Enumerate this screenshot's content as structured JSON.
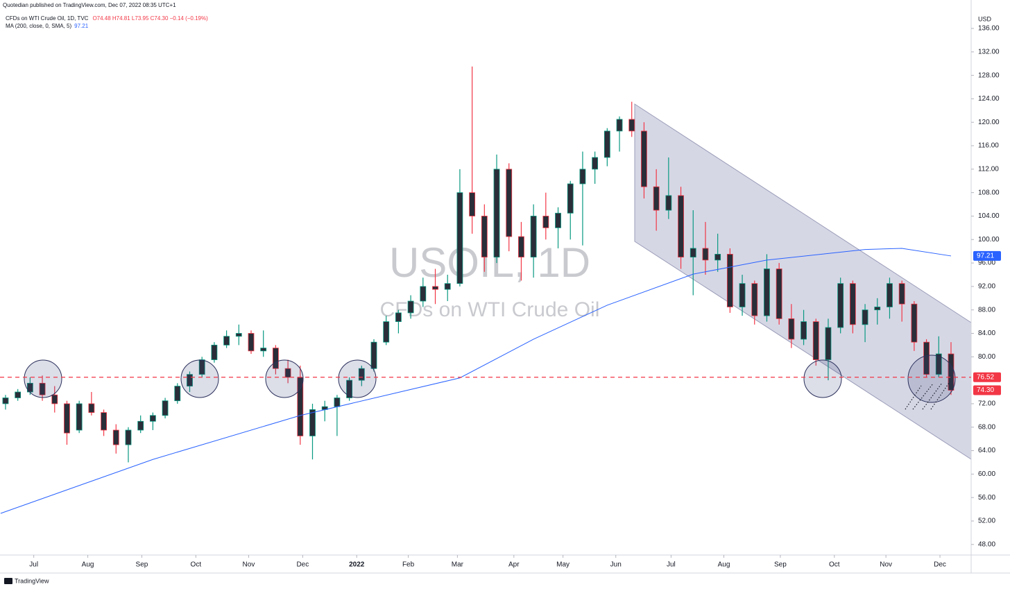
{
  "chart_data": {
    "type": "candlestick",
    "title": "USOIL, 1D",
    "subtitle": "CFDs on WTI Crude Oil",
    "source": "Quotedian published on TradingView.com, Dec 07, 2022 08:35 UTC+1",
    "symbol": "CFDs on WTI Crude Oil, 1D, TVC",
    "ohlc_text": "O74.48 H74.81 L73.95 C74.30 −0.14 (−0.19%)",
    "y_unit": "USD",
    "branding": "TradingView",
    "up_color": "#089981",
    "down_color": "#f23645",
    "body_color": "#2a2e39",
    "x": [
      0,
      1,
      2,
      3,
      4,
      5,
      6,
      7,
      8,
      9,
      10,
      11,
      12,
      13,
      14,
      15,
      16,
      17,
      18,
      19,
      20,
      21,
      22,
      23,
      24,
      25,
      26,
      27,
      28,
      29,
      30,
      31,
      32,
      33,
      34,
      35,
      36,
      37,
      38,
      39,
      40,
      41,
      42,
      43,
      44,
      45,
      46,
      47,
      48,
      49,
      50,
      51,
      52,
      53,
      54,
      55,
      56,
      57,
      58,
      59,
      60,
      61,
      62,
      63,
      64,
      65,
      66,
      67,
      68,
      69,
      70,
      71,
      72,
      73,
      74,
      75,
      76,
      77
    ],
    "open": [
      72.0,
      73.0,
      74.0,
      75.5,
      73.5,
      72.0,
      67.5,
      72.0,
      70.5,
      67.5,
      65.0,
      67.5,
      69.0,
      70.0,
      72.5,
      75.0,
      77.0,
      79.5,
      82.0,
      83.5,
      84.0,
      81.0,
      81.5,
      78.0,
      76.5,
      66.5,
      71.0,
      71.5,
      73.0,
      76.0,
      78.0,
      82.5,
      86.0,
      87.5,
      89.5,
      92.0,
      91.5,
      92.5,
      108.0,
      104.0,
      97.0,
      112.0,
      100.5,
      97.0,
      104.0,
      102.0,
      104.5,
      109.5,
      112.0,
      114.0,
      118.5,
      120.5,
      118.5,
      109.0,
      105.0,
      107.5,
      97.0,
      98.5,
      96.5,
      97.5,
      88.5,
      92.5,
      87.0,
      95.0,
      86.5,
      83.0,
      86.0,
      79.5,
      85.0,
      92.5,
      85.5,
      88.0,
      88.5,
      92.5,
      89.0,
      82.5,
      77.0,
      80.5
    ],
    "high": [
      73.5,
      74.5,
      76.5,
      76.8,
      75.0,
      72.5,
      72.5,
      74.0,
      71.0,
      68.5,
      68.0,
      70.0,
      70.5,
      73.0,
      75.5,
      77.5,
      80.0,
      82.5,
      84.5,
      85.5,
      84.5,
      84.5,
      82.0,
      79.5,
      78.5,
      72.0,
      72.5,
      73.5,
      76.5,
      78.5,
      83.0,
      87.0,
      88.0,
      90.5,
      93.5,
      95.0,
      94.0,
      112.0,
      129.5,
      106.0,
      114.5,
      113.0,
      103.0,
      106.0,
      108.0,
      105.5,
      110.0,
      115.0,
      115.0,
      119.0,
      121.0,
      123.5,
      120.0,
      112.0,
      114.0,
      109.0,
      105.0,
      103.0,
      101.0,
      98.5,
      94.0,
      93.0,
      97.5,
      96.0,
      89.0,
      88.0,
      86.5,
      86.5,
      93.5,
      93.0,
      89.0,
      90.0,
      93.5,
      93.0,
      89.5,
      83.0,
      83.5,
      82.5
    ],
    "low": [
      71.0,
      72.5,
      73.5,
      72.5,
      70.5,
      65.0,
      67.0,
      70.0,
      66.5,
      63.5,
      62.0,
      67.0,
      67.5,
      69.5,
      72.0,
      74.0,
      76.5,
      79.0,
      81.5,
      82.0,
      80.5,
      80.0,
      77.0,
      75.5,
      65.0,
      62.5,
      69.0,
      66.5,
      72.5,
      75.0,
      77.5,
      82.0,
      84.0,
      86.5,
      88.5,
      89.0,
      89.5,
      92.0,
      101.0,
      94.5,
      96.0,
      98.0,
      93.0,
      93.5,
      100.0,
      98.5,
      100.0,
      99.0,
      109.5,
      112.5,
      115.0,
      117.5,
      107.0,
      101.5,
      103.5,
      95.0,
      90.5,
      94.0,
      94.5,
      87.5,
      87.0,
      85.5,
      86.0,
      85.5,
      81.5,
      82.0,
      78.5,
      76.0,
      84.0,
      84.0,
      82.5,
      85.5,
      86.5,
      86.0,
      81.0,
      76.5,
      76.5,
      73.5
    ],
    "close": [
      73.0,
      74.0,
      75.5,
      73.5,
      72.0,
      67.0,
      72.0,
      70.5,
      67.5,
      65.0,
      67.5,
      69.0,
      70.0,
      72.5,
      75.0,
      77.0,
      79.5,
      82.0,
      83.5,
      84.0,
      81.0,
      81.5,
      78.0,
      76.5,
      66.5,
      71.0,
      71.5,
      73.0,
      76.0,
      78.0,
      82.5,
      86.0,
      87.5,
      89.5,
      92.0,
      91.5,
      92.5,
      108.0,
      104.0,
      97.0,
      112.0,
      100.5,
      97.0,
      104.0,
      102.0,
      104.5,
      109.5,
      112.0,
      114.0,
      118.5,
      120.5,
      118.5,
      109.0,
      105.0,
      107.5,
      97.0,
      98.5,
      96.5,
      97.5,
      88.5,
      92.5,
      87.0,
      95.0,
      86.5,
      83.0,
      86.0,
      79.5,
      85.0,
      92.5,
      85.5,
      88.0,
      88.5,
      92.5,
      89.0,
      82.5,
      77.0,
      80.5,
      74.3
    ],
    "ma": {
      "name": "MA (200, close, 0, SMA, 5)",
      "last": 97.21,
      "color": "#2962ff",
      "x": [
        -0.4,
        12,
        24,
        37,
        43,
        49,
        56,
        62,
        70,
        73,
        77
      ],
      "values": [
        53.3,
        62.5,
        70.0,
        76.4,
        83.0,
        88.8,
        94.1,
        96.5,
        98.3,
        98.5,
        97.2
      ]
    },
    "price_labels": [
      97.21,
      76.52,
      {
        "value": 74.3,
        "label": "74.30"
      }
    ],
    "price_label_colors": [
      "#2962ff",
      "#f23645",
      "#f23645"
    ],
    "xlim": [
      -0.45,
      78.64
    ],
    "ylim": [
      46.2,
      140.85
    ],
    "xticks": [
      {
        "value": 2.3,
        "label": "Jul"
      },
      {
        "value": 6.7,
        "label": "Aug"
      },
      {
        "value": 11.1,
        "label": "Sep"
      },
      {
        "value": 15.5,
        "label": "Oct"
      },
      {
        "value": 19.8,
        "label": "Nov"
      },
      {
        "value": 24.2,
        "label": "Dec"
      },
      {
        "value": 28.6,
        "label": "2022"
      },
      {
        "value": 32.8,
        "label": "Feb"
      },
      {
        "value": 36.8,
        "label": "Mar"
      },
      {
        "value": 41.4,
        "label": "Apr"
      },
      {
        "value": 45.4,
        "label": "May"
      },
      {
        "value": 49.7,
        "label": "Jun"
      },
      {
        "value": 54.2,
        "label": "Jul"
      },
      {
        "value": 58.5,
        "label": "Aug"
      },
      {
        "value": 63.1,
        "label": "Sep"
      },
      {
        "value": 67.5,
        "label": "Oct"
      },
      {
        "value": 71.7,
        "label": "Nov"
      },
      {
        "value": 76.1,
        "label": "Dec"
      }
    ],
    "yticks": [
      {
        "value": 136,
        "label": "136.00"
      },
      {
        "value": 132,
        "label": "132.00"
      },
      {
        "value": 128,
        "label": "128.00"
      },
      {
        "value": 124,
        "label": "124.00"
      },
      {
        "value": 120,
        "label": "120.00"
      },
      {
        "value": 116,
        "label": "116.00"
      },
      {
        "value": 112,
        "label": "112.00"
      },
      {
        "value": 108,
        "label": "108.00"
      },
      {
        "value": 104,
        "label": "104.00"
      },
      {
        "value": 100,
        "label": "100.00"
      },
      {
        "value": 96,
        "label": "96.00"
      },
      {
        "value": 92,
        "label": "92.00"
      },
      {
        "value": 88,
        "label": "88.00"
      },
      {
        "value": 84,
        "label": "84.00"
      },
      {
        "value": 80,
        "label": "80.00"
      },
      {
        "value": 72,
        "label": "72.00"
      },
      {
        "value": 68,
        "label": "68.00"
      },
      {
        "value": 64,
        "label": "64.00"
      },
      {
        "value": 60,
        "label": "60.00"
      },
      {
        "value": 56,
        "label": "56.00"
      },
      {
        "value": 52,
        "label": "52.00"
      },
      {
        "value": 48,
        "label": "48.00"
      }
    ]
  }
}
